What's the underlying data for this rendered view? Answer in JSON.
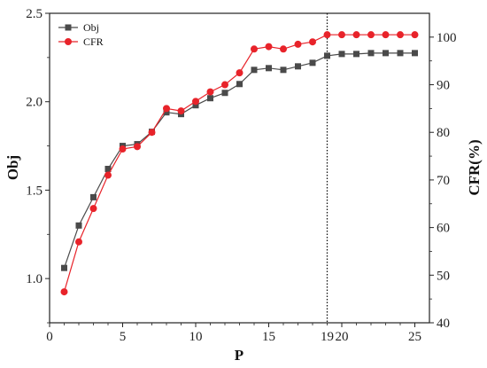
{
  "chart_data": {
    "type": "line",
    "xlabel": "P",
    "ylabel": "Obj",
    "y2label": "CFR(%)",
    "xlim": [
      0,
      26
    ],
    "ylim": [
      0.75,
      2.5
    ],
    "y2lim": [
      40,
      105
    ],
    "x_ticks": [
      0,
      5,
      10,
      15,
      20,
      25
    ],
    "x_tick_labels": [
      "0",
      "5",
      "10",
      "15",
      "20",
      "25"
    ],
    "y_ticks": [
      1.0,
      1.5,
      2.0,
      2.5
    ],
    "y_tick_labels": [
      "1.0",
      "1.5",
      "2.0",
      "2.5"
    ],
    "y2_ticks": [
      40,
      50,
      60,
      70,
      80,
      90,
      100
    ],
    "y2_tick_labels": [
      "40",
      "50",
      "60",
      "70",
      "80",
      "90",
      "100"
    ],
    "vline": {
      "x": 19,
      "label": "19",
      "style": "dotted"
    },
    "legend": {
      "position": "top-left"
    },
    "x": [
      1,
      2,
      3,
      4,
      5,
      6,
      7,
      8,
      9,
      10,
      11,
      12,
      13,
      14,
      15,
      16,
      17,
      18,
      19,
      20,
      21,
      22,
      23,
      24,
      25
    ],
    "series": [
      {
        "name": "Obj",
        "axis": "left",
        "color": "#4a4a4a",
        "marker": "square",
        "values": [
          1.06,
          1.3,
          1.46,
          1.62,
          1.75,
          1.76,
          1.83,
          1.94,
          1.93,
          1.98,
          2.02,
          2.05,
          2.1,
          2.18,
          2.19,
          2.18,
          2.2,
          2.22,
          2.26,
          2.27,
          2.27,
          2.275,
          2.275,
          2.275,
          2.275
        ]
      },
      {
        "name": "CFR",
        "axis": "right",
        "color": "#e8232a",
        "marker": "circle",
        "values": [
          46.5,
          57.0,
          64.0,
          71.0,
          76.5,
          77.0,
          80.0,
          85.0,
          84.5,
          86.5,
          88.5,
          90.0,
          92.5,
          97.5,
          98.0,
          97.5,
          98.5,
          99.0,
          100.5,
          100.5,
          100.5,
          100.5,
          100.5,
          100.5,
          100.5
        ]
      }
    ]
  }
}
